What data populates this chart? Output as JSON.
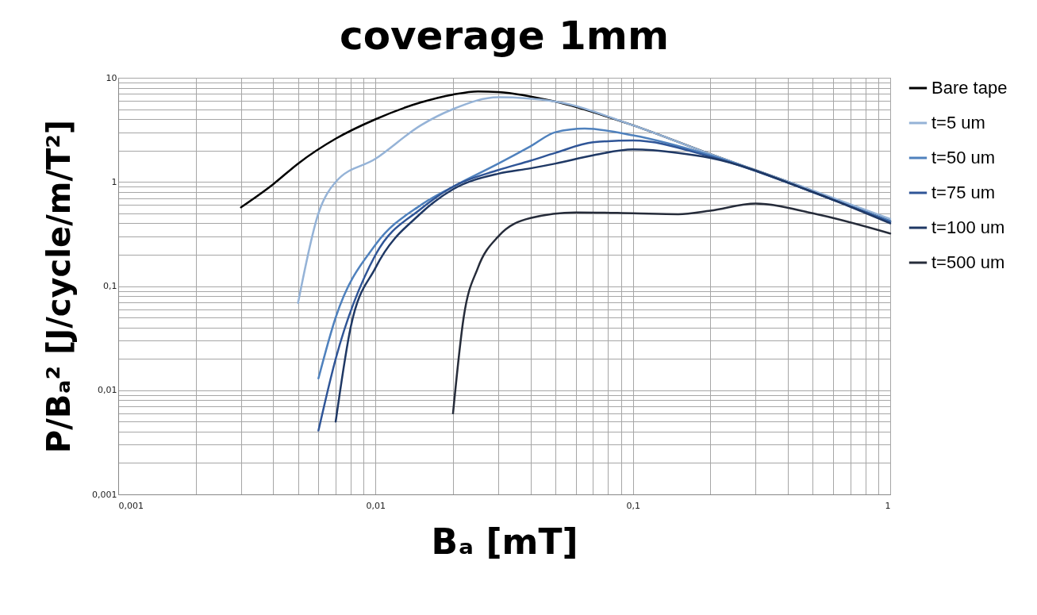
{
  "chart_data": {
    "type": "line",
    "title": "coverage 1mm",
    "xlabel": "Bₐ [mT]",
    "ylabel": "P/Bₐ² [J/cycle/m/T²]",
    "log": "xy",
    "grid": true,
    "legend": "right",
    "line_style": "solid",
    "marker": "none",
    "xlim": [
      0.001,
      1
    ],
    "ylim": [
      0.001,
      10
    ],
    "xticks": [
      {
        "value": 0.001,
        "label": "0,001"
      },
      {
        "value": 0.002,
        "label": null
      },
      {
        "value": 0.003,
        "label": null
      },
      {
        "value": 0.004,
        "label": null
      },
      {
        "value": 0.005,
        "label": null
      },
      {
        "value": 0.006,
        "label": null
      },
      {
        "value": 0.007,
        "label": null
      },
      {
        "value": 0.008,
        "label": null
      },
      {
        "value": 0.009,
        "label": null
      },
      {
        "value": 0.01,
        "label": "0,01"
      },
      {
        "value": 0.02,
        "label": null
      },
      {
        "value": 0.03,
        "label": null
      },
      {
        "value": 0.04,
        "label": null
      },
      {
        "value": 0.05,
        "label": null
      },
      {
        "value": 0.06,
        "label": null
      },
      {
        "value": 0.07,
        "label": null
      },
      {
        "value": 0.08,
        "label": null
      },
      {
        "value": 0.09,
        "label": null
      },
      {
        "value": 0.1,
        "label": "0,1"
      },
      {
        "value": 0.2,
        "label": null
      },
      {
        "value": 0.3,
        "label": null
      },
      {
        "value": 0.4,
        "label": null
      },
      {
        "value": 0.5,
        "label": null
      },
      {
        "value": 0.6,
        "label": null
      },
      {
        "value": 0.7,
        "label": null
      },
      {
        "value": 0.8,
        "label": null
      },
      {
        "value": 0.9,
        "label": null
      },
      1
    ],
    "yticks": [
      {
        "value": 0.001,
        "label": "0,001"
      },
      {
        "value": 0.002,
        "label": null
      },
      {
        "value": 0.003,
        "label": null
      },
      {
        "value": 0.004,
        "label": null
      },
      {
        "value": 0.005,
        "label": null
      },
      {
        "value": 0.006,
        "label": null
      },
      {
        "value": 0.007,
        "label": null
      },
      {
        "value": 0.008,
        "label": null
      },
      {
        "value": 0.009,
        "label": null
      },
      {
        "value": 0.01,
        "label": "0,01"
      },
      {
        "value": 0.02,
        "label": null
      },
      {
        "value": 0.03,
        "label": null
      },
      {
        "value": 0.04,
        "label": null
      },
      {
        "value": 0.05,
        "label": null
      },
      {
        "value": 0.06,
        "label": null
      },
      {
        "value": 0.07,
        "label": null
      },
      {
        "value": 0.08,
        "label": null
      },
      {
        "value": 0.09,
        "label": null
      },
      {
        "value": 0.1,
        "label": "0,1"
      },
      {
        "value": 0.2,
        "label": null
      },
      {
        "value": 0.3,
        "label": null
      },
      {
        "value": 0.4,
        "label": null
      },
      {
        "value": 0.5,
        "label": null
      },
      {
        "value": 0.6,
        "label": null
      },
      {
        "value": 0.7,
        "label": null
      },
      {
        "value": 0.8,
        "label": null
      },
      {
        "value": 0.9,
        "label": null
      },
      1,
      {
        "value": 2,
        "label": null
      },
      {
        "value": 3,
        "label": null
      },
      {
        "value": 4,
        "label": null
      },
      {
        "value": 5,
        "label": null
      },
      {
        "value": 6,
        "label": null
      },
      {
        "value": 7,
        "label": null
      },
      {
        "value": 8,
        "label": null
      },
      {
        "value": 9,
        "label": null
      },
      10
    ],
    "series": [
      {
        "name": "Bare tape",
        "color": "#000000",
        "x": [
          0.003,
          0.004,
          0.005,
          0.007,
          0.01,
          0.015,
          0.02,
          0.025,
          0.03,
          0.05,
          0.1,
          0.2,
          0.5,
          1
        ],
        "values": [
          0.57,
          0.95,
          1.5,
          2.6,
          4.0,
          5.8,
          6.9,
          7.4,
          7.3,
          5.9,
          3.5,
          1.85,
          0.82,
          0.42
        ]
      },
      {
        "name": "t=5 um",
        "color": "#95b3d7",
        "x": [
          0.005,
          0.006,
          0.007,
          0.01,
          0.015,
          0.02,
          0.03,
          0.05,
          0.1,
          0.2,
          0.5,
          1
        ],
        "values": [
          0.069,
          0.5,
          1.0,
          1.67,
          3.5,
          5.0,
          6.5,
          5.9,
          3.5,
          1.85,
          0.83,
          0.44
        ]
      },
      {
        "name": "t=50 um",
        "color": "#4f81bd",
        "x": [
          0.006,
          0.007,
          0.01,
          0.015,
          0.02,
          0.03,
          0.04,
          0.05,
          0.065,
          0.1,
          0.2,
          0.5,
          1
        ],
        "values": [
          0.013,
          0.05,
          0.25,
          0.6,
          0.9,
          1.5,
          2.2,
          3.0,
          3.25,
          2.8,
          1.8,
          0.8,
          0.42
        ]
      },
      {
        "name": "t=75 um",
        "color": "#2f5597",
        "x": [
          0.006,
          0.007,
          0.01,
          0.015,
          0.02,
          0.03,
          0.04,
          0.05,
          0.07,
          0.1,
          0.2,
          0.5,
          1
        ],
        "values": [
          0.0041,
          0.02,
          0.2,
          0.55,
          0.9,
          1.3,
          1.6,
          1.9,
          2.4,
          2.5,
          1.75,
          0.8,
          0.41
        ]
      },
      {
        "name": "t=100 um",
        "color": "#1f3864",
        "x": [
          0.007,
          0.008,
          0.01,
          0.015,
          0.02,
          0.03,
          0.04,
          0.05,
          0.07,
          0.1,
          0.15,
          0.2,
          0.5,
          1
        ],
        "values": [
          0.005,
          0.04,
          0.15,
          0.5,
          0.85,
          1.2,
          1.35,
          1.5,
          1.8,
          2.05,
          1.9,
          1.7,
          0.8,
          0.4
        ]
      },
      {
        "name": "t=500 um",
        "color": "#262c3a",
        "x": [
          0.02,
          0.022,
          0.025,
          0.03,
          0.04,
          0.06,
          0.1,
          0.15,
          0.2,
          0.3,
          0.5,
          1
        ],
        "values": [
          0.006,
          0.05,
          0.15,
          0.3,
          0.45,
          0.51,
          0.5,
          0.49,
          0.53,
          0.62,
          0.5,
          0.32
        ]
      }
    ]
  }
}
